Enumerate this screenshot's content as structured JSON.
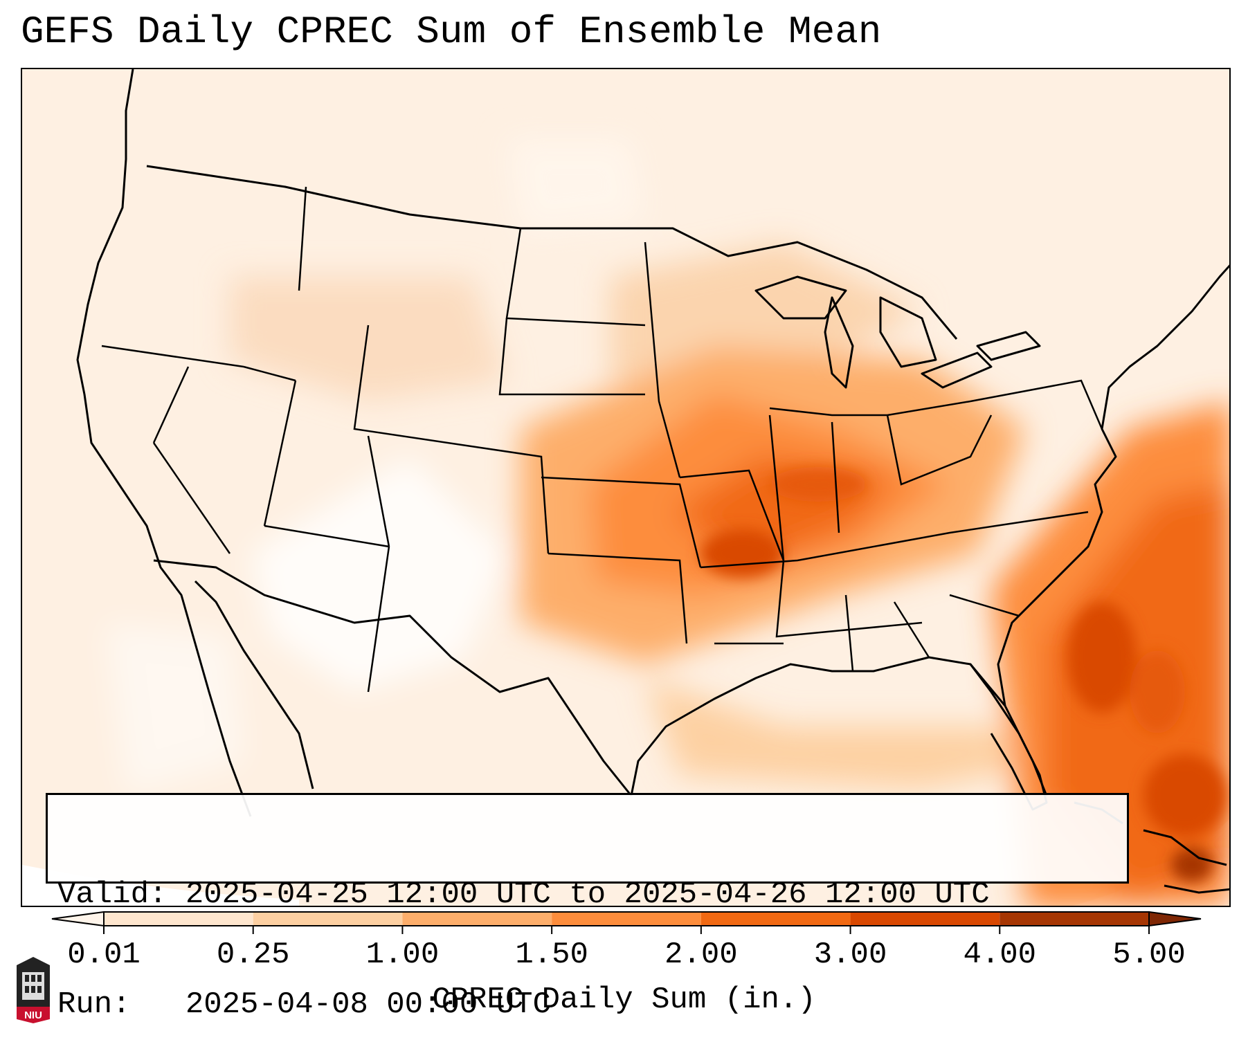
{
  "title": "GEFS Daily CPREC Sum of Ensemble Mean",
  "info": {
    "valid": "Valid: 2025-04-25 12:00 UTC to 2025-04-26 12:00 UTC",
    "run": "Run:   2025-04-08 00:00 UTC"
  },
  "colorbar": {
    "label": "CPREC Daily Sum (in.)",
    "ticks": [
      "0.01",
      "0.25",
      "1.00",
      "1.50",
      "2.00",
      "3.00",
      "4.00",
      "5.00"
    ],
    "colors": [
      "#fff5eb",
      "#fee6ce",
      "#fdd0a2",
      "#fdae6b",
      "#fd8d3c",
      "#f16913",
      "#d94801",
      "#a63603",
      "#7f2704"
    ]
  },
  "logo": {
    "text": "NIU"
  },
  "map": {
    "projection": "Lambert conformal, contiguous United States",
    "field": "precipitation shading"
  }
}
